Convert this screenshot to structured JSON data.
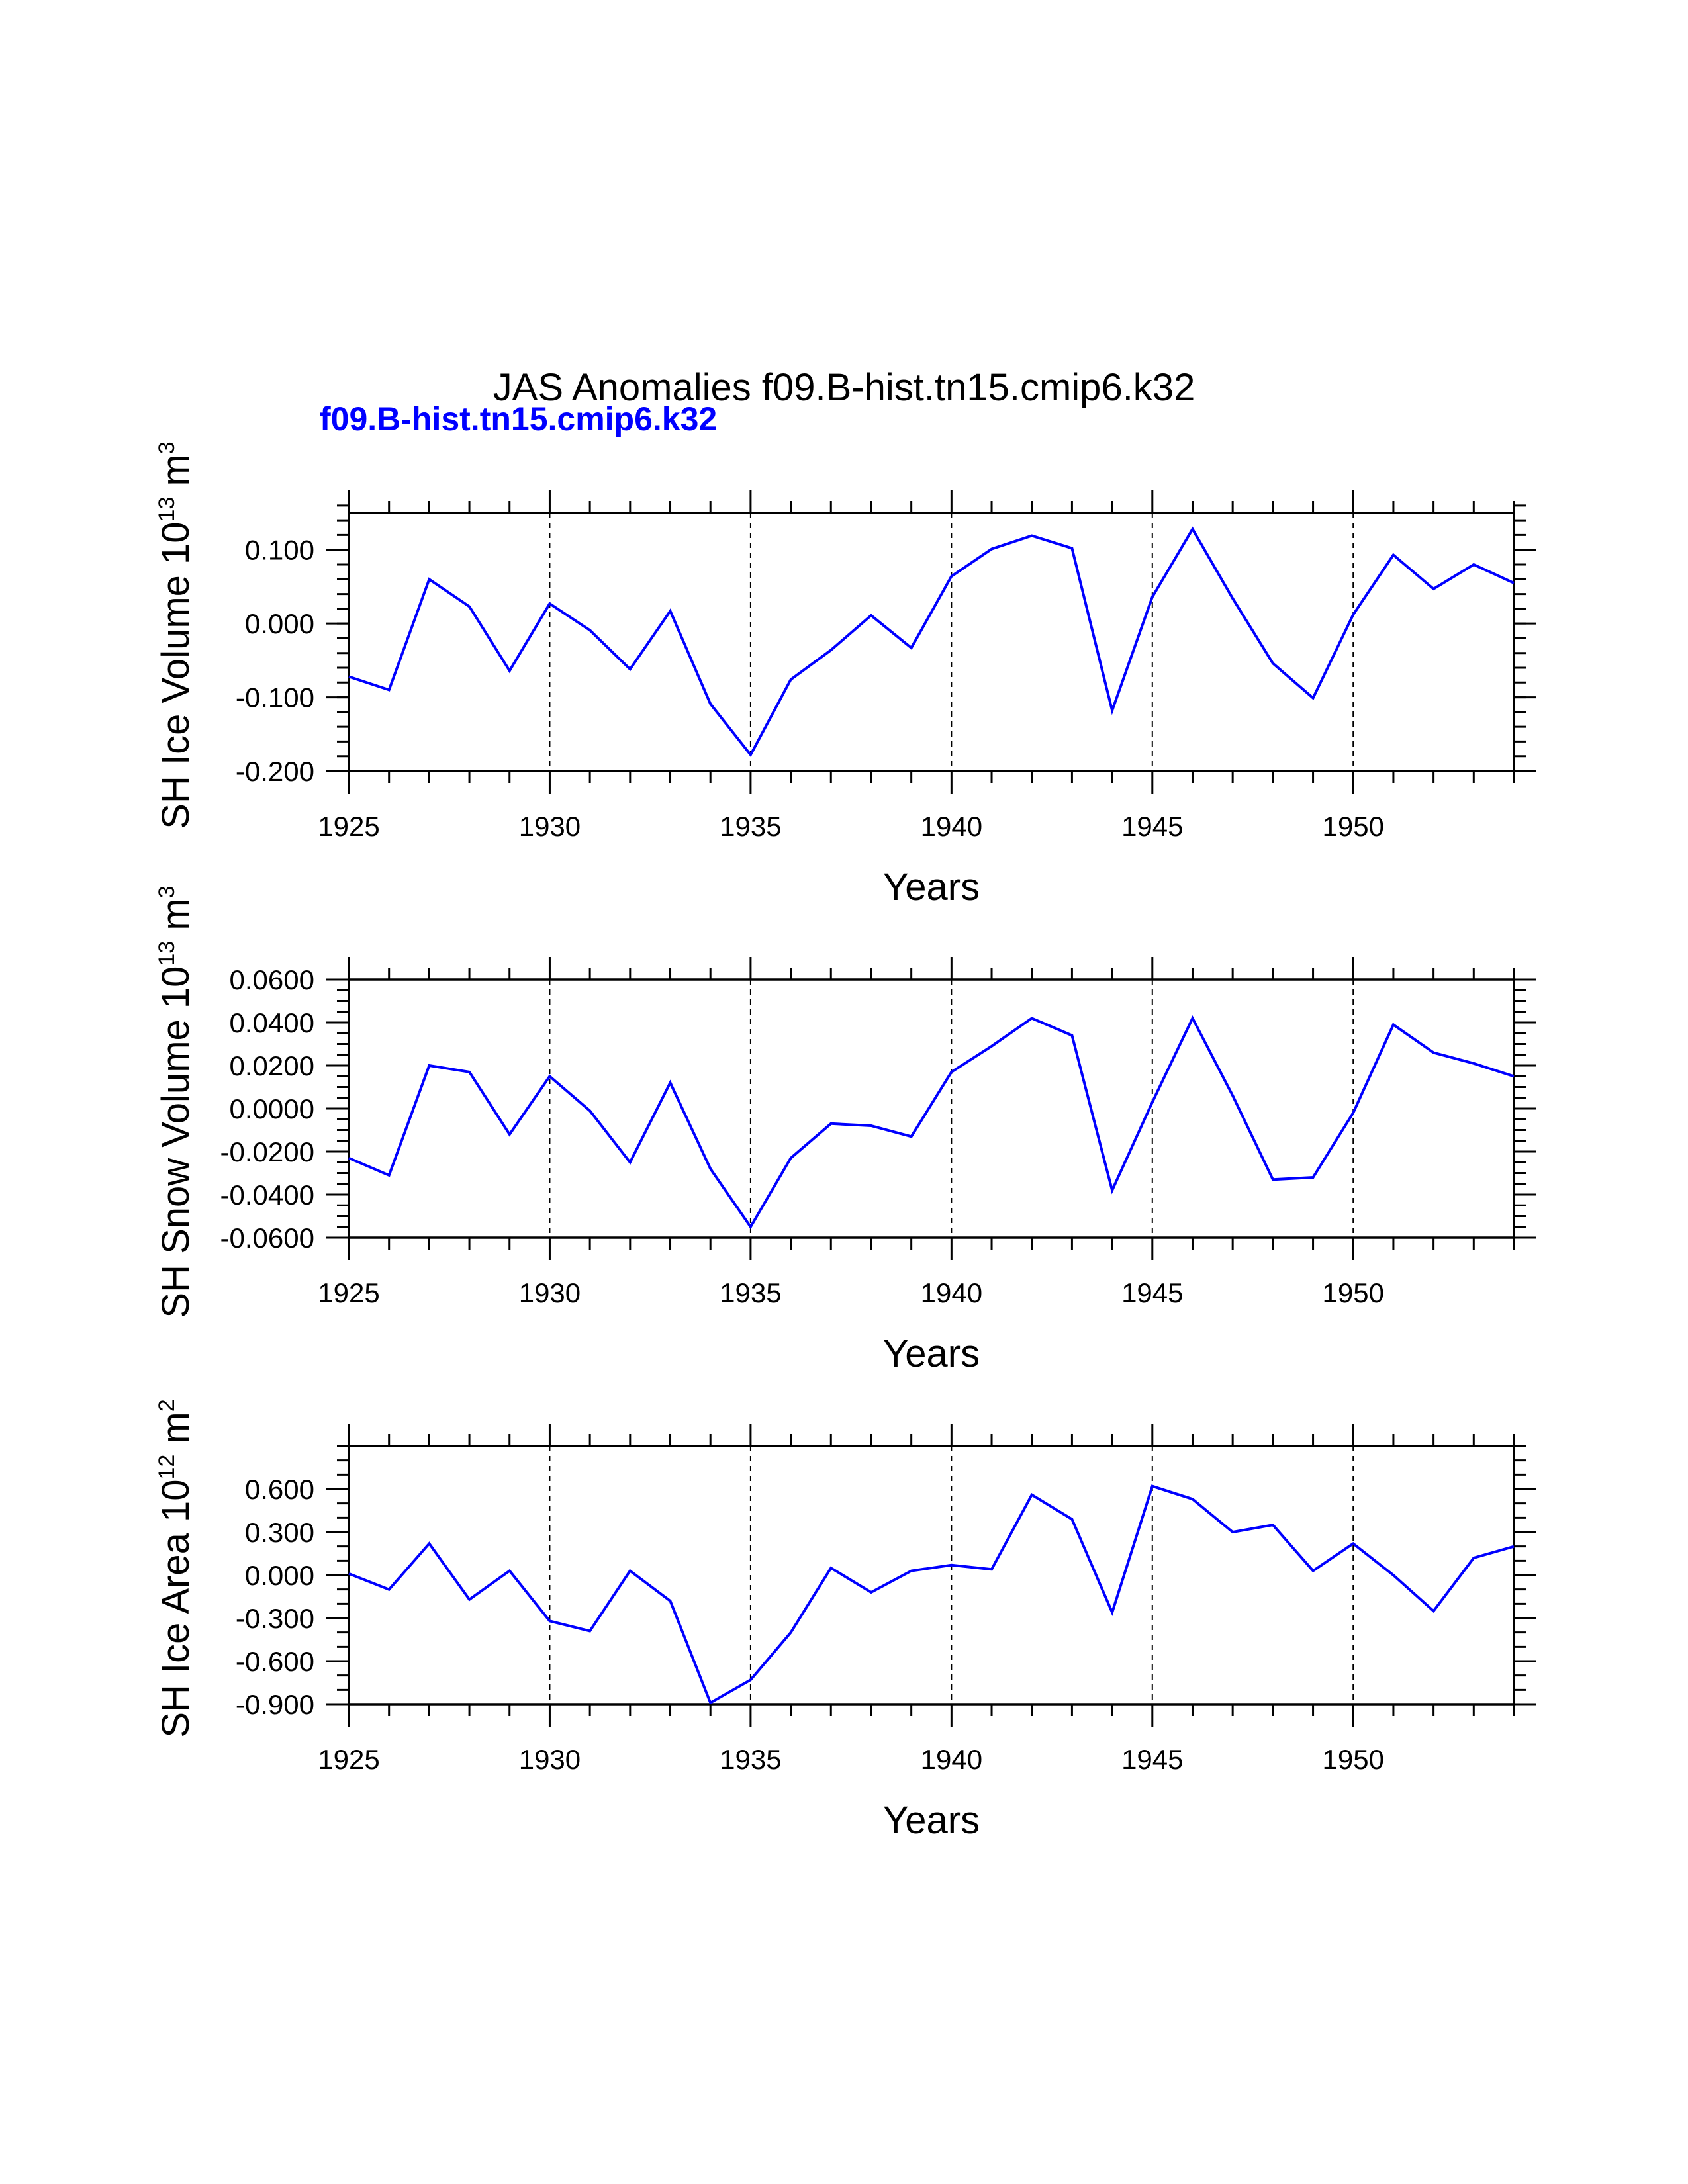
{
  "header": {
    "title": "JAS Anomalies f09.B-hist.tn15.cmip6.k32",
    "subtitle": "f09.B-hist.tn15.cmip6.k32"
  },
  "colors": {
    "series": "#0000ff",
    "axis": "#000000"
  },
  "chart_data": [
    {
      "type": "line",
      "title": "JAS Anomalies f09.B-hist.tn15.cmip6.k32",
      "subtitle": "f09.B-hist.tn15.cmip6.k32",
      "ylabel": "SH Ice Volume 10",
      "ylabel_exp": "13",
      "ylabel_unit": "m",
      "ylabel_unit_exp": "3",
      "xlabel": "Years",
      "xlim": [
        1925,
        1954
      ],
      "ylim": [
        -0.2,
        0.15
      ],
      "yticks": [
        -0.2,
        -0.1,
        0.0,
        0.1
      ],
      "ytick_labels": [
        "-0.200",
        "-0.100",
        "0.000",
        "0.100"
      ],
      "yminor_step": 0.02,
      "xticks": [
        1925,
        1930,
        1935,
        1940,
        1945,
        1950
      ],
      "xtick_labels": [
        "1925",
        "1930",
        "1935",
        "1940",
        "1945",
        "1950"
      ],
      "grid_x": [
        1930,
        1935,
        1940,
        1945,
        1950
      ],
      "series": [
        {
          "name": "f09.B-hist.tn15.cmip6.k32",
          "x": [
            1925,
            1926,
            1927,
            1928,
            1929,
            1930,
            1931,
            1932,
            1933,
            1934,
            1935,
            1936,
            1937,
            1938,
            1939,
            1940,
            1941,
            1942,
            1943,
            1944,
            1945,
            1946,
            1947,
            1948,
            1949,
            1950,
            1951,
            1952,
            1953,
            1954
          ],
          "values": [
            -0.072,
            -0.09,
            0.06,
            0.023,
            -0.064,
            0.027,
            -0.009,
            -0.062,
            0.017,
            -0.109,
            -0.178,
            -0.076,
            -0.036,
            0.011,
            -0.033,
            0.064,
            0.101,
            0.119,
            0.102,
            -0.118,
            0.036,
            0.128,
            0.034,
            -0.054,
            -0.101,
            0.012,
            0.093,
            0.047,
            0.08,
            0.055
          ]
        }
      ]
    },
    {
      "type": "line",
      "ylabel": "SH Snow Volume 10",
      "ylabel_exp": "13",
      "ylabel_unit": "m",
      "ylabel_unit_exp": "3",
      "xlabel": "Years",
      "xlim": [
        1925,
        1954
      ],
      "ylim": [
        -0.06,
        0.06
      ],
      "yticks": [
        -0.06,
        -0.04,
        -0.02,
        0.0,
        0.02,
        0.04,
        0.06
      ],
      "ytick_labels": [
        "-0.0600",
        "-0.0400",
        "-0.0200",
        "0.0000",
        "0.0200",
        "0.0400",
        "0.0600"
      ],
      "yminor_step": 0.005,
      "xticks": [
        1925,
        1930,
        1935,
        1940,
        1945,
        1950
      ],
      "xtick_labels": [
        "1925",
        "1930",
        "1935",
        "1940",
        "1945",
        "1950"
      ],
      "grid_x": [
        1930,
        1935,
        1940,
        1945,
        1950
      ],
      "series": [
        {
          "name": "f09.B-hist.tn15.cmip6.k32",
          "x": [
            1925,
            1926,
            1927,
            1928,
            1929,
            1930,
            1931,
            1932,
            1933,
            1934,
            1935,
            1936,
            1937,
            1938,
            1939,
            1940,
            1941,
            1942,
            1943,
            1944,
            1945,
            1946,
            1947,
            1948,
            1949,
            1950,
            1951,
            1952,
            1953,
            1954
          ],
          "values": [
            -0.023,
            -0.031,
            0.02,
            0.017,
            -0.012,
            0.015,
            -0.001,
            -0.025,
            0.012,
            -0.028,
            -0.055,
            -0.023,
            -0.007,
            -0.008,
            -0.013,
            0.017,
            0.029,
            0.042,
            0.034,
            -0.038,
            0.003,
            0.042,
            0.006,
            -0.033,
            -0.032,
            -0.002,
            0.039,
            0.026,
            0.021,
            0.015
          ]
        }
      ]
    },
    {
      "type": "line",
      "ylabel": "SH Ice Area 10",
      "ylabel_exp": "12",
      "ylabel_unit": "m",
      "ylabel_unit_exp": "2",
      "xlabel": "Years",
      "xlim": [
        1925,
        1954
      ],
      "ylim": [
        -0.9,
        0.9
      ],
      "yticks": [
        -0.9,
        -0.6,
        -0.3,
        0.0,
        0.3,
        0.6
      ],
      "ytick_labels": [
        "-0.900",
        "-0.600",
        "-0.300",
        "0.000",
        "0.300",
        "0.600"
      ],
      "yminor_step": 0.1,
      "xticks": [
        1925,
        1930,
        1935,
        1940,
        1945,
        1950
      ],
      "xtick_labels": [
        "1925",
        "1930",
        "1935",
        "1940",
        "1945",
        "1950"
      ],
      "grid_x": [
        1930,
        1935,
        1940,
        1945,
        1950
      ],
      "series": [
        {
          "name": "f09.B-hist.tn15.cmip6.k32",
          "x": [
            1925,
            1926,
            1927,
            1928,
            1929,
            1930,
            1931,
            1932,
            1933,
            1934,
            1935,
            1936,
            1937,
            1938,
            1939,
            1940,
            1941,
            1942,
            1943,
            1944,
            1945,
            1946,
            1947,
            1948,
            1949,
            1950,
            1951,
            1952,
            1953,
            1954
          ],
          "values": [
            0.01,
            -0.1,
            0.22,
            -0.17,
            0.03,
            -0.32,
            -0.39,
            0.03,
            -0.18,
            -0.89,
            -0.73,
            -0.4,
            0.05,
            -0.12,
            0.03,
            0.07,
            0.04,
            0.56,
            0.39,
            -0.26,
            0.62,
            0.53,
            0.3,
            0.35,
            0.03,
            0.22,
            0.0,
            -0.25,
            0.12,
            0.2
          ]
        }
      ]
    }
  ]
}
